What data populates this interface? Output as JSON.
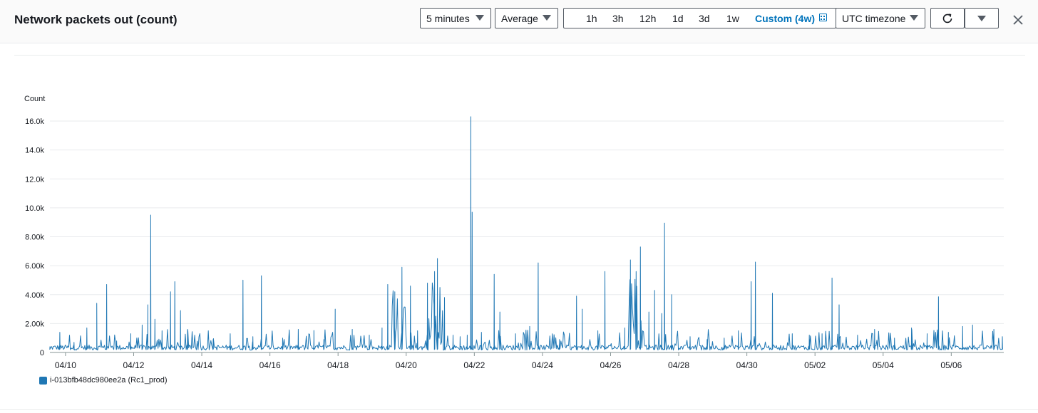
{
  "header": {
    "title": "Network packets out (count)",
    "period": {
      "selected": "5 minutes"
    },
    "statistic": {
      "selected": "Average"
    },
    "ranges": [
      {
        "label": "1h",
        "active": false
      },
      {
        "label": "3h",
        "active": false
      },
      {
        "label": "12h",
        "active": false
      },
      {
        "label": "1d",
        "active": false
      },
      {
        "label": "3d",
        "active": false
      },
      {
        "label": "1w",
        "active": false
      },
      {
        "label": "Custom (4w)",
        "active": true
      }
    ],
    "timezone": {
      "selected": "UTC timezone"
    },
    "icons": {
      "refresh": "refresh-icon",
      "more": "caret-down-icon",
      "close": "close-icon",
      "calendar": "calendar-icon"
    }
  },
  "chart_data": {
    "type": "line",
    "ylabel": "Count",
    "ylim": [
      0,
      16000
    ],
    "yticks": [
      {
        "value": 0,
        "label": "0"
      },
      {
        "value": 2000,
        "label": "2.00k"
      },
      {
        "value": 4000,
        "label": "4.00k"
      },
      {
        "value": 6000,
        "label": "6.00k"
      },
      {
        "value": 8000,
        "label": "8.00k"
      },
      {
        "value": 10000,
        "label": "10.0k"
      },
      {
        "value": 12000,
        "label": "12.0k"
      },
      {
        "value": 14000,
        "label": "14.0k"
      },
      {
        "value": 16000,
        "label": "16.0k"
      }
    ],
    "xlim": [
      "04/09 13:00",
      "05/07 13:00"
    ],
    "xticks": [
      "04/10",
      "04/12",
      "04/14",
      "04/16",
      "04/18",
      "04/20",
      "04/22",
      "04/24",
      "04/26",
      "04/28",
      "04/30",
      "05/02",
      "05/04",
      "05/06"
    ],
    "grid": true,
    "legend_position": "bottom-left",
    "series": [
      {
        "name": "i-013bfb48dc980ee2a (Rc1_prod)",
        "color": "#1f77b4",
        "baseline": 400,
        "points": [
          [
            "04/09 13:00",
            300
          ],
          [
            "04/09 20:00",
            1400
          ],
          [
            "04/10 06:00",
            700
          ],
          [
            "04/10 15:00",
            1700
          ],
          [
            "04/10 22:00",
            3400
          ],
          [
            "04/11 05:00",
            4700
          ],
          [
            "04/11 12:00",
            800
          ],
          [
            "04/11 22:00",
            1300
          ],
          [
            "04/12 06:00",
            1900
          ],
          [
            "04/12 10:00",
            3300
          ],
          [
            "04/12 12:00",
            9500
          ],
          [
            "04/12 15:00",
            2300
          ],
          [
            "04/12 20:00",
            1500
          ],
          [
            "04/13 02:00",
            4200
          ],
          [
            "04/13 05:00",
            4900
          ],
          [
            "04/13 09:00",
            2900
          ],
          [
            "04/13 14:00",
            1600
          ],
          [
            "04/14 08:00",
            900
          ],
          [
            "04/14 20:00",
            1300
          ],
          [
            "04/15 05:00",
            5000
          ],
          [
            "04/15 12:00",
            1100
          ],
          [
            "04/15 18:00",
            5300
          ],
          [
            "04/16 09:00",
            1000
          ],
          [
            "04/16 20:00",
            1600
          ],
          [
            "04/17 07:00",
            900
          ],
          [
            "04/17 14:00",
            900
          ],
          [
            "04/17 22:00",
            3000
          ],
          [
            "04/18 10:00",
            1600
          ],
          [
            "04/18 22:00",
            1200
          ],
          [
            "04/19 07:00",
            1700
          ],
          [
            "04/19 11:00",
            4700
          ],
          [
            "04/19 16:00",
            4200
          ],
          [
            "04/19 21:00",
            5900
          ],
          [
            "04/20 03:00",
            4600
          ],
          [
            "04/20 08:00",
            1500
          ],
          [
            "04/20 15:00",
            4800
          ],
          [
            "04/20 20:00",
            5600
          ],
          [
            "04/20 22:00",
            6500
          ],
          [
            "04/21 03:00",
            3800
          ],
          [
            "04/21 09:00",
            1200
          ],
          [
            "04/21 14:00",
            1100
          ],
          [
            "04/21 19:00",
            1200
          ],
          [
            "04/21 21:30",
            16300
          ],
          [
            "04/21 22:30",
            9700
          ],
          [
            "04/22 05:00",
            1400
          ],
          [
            "04/22 14:00",
            5400
          ],
          [
            "04/22 18:00",
            2800
          ],
          [
            "04/23 05:00",
            1300
          ],
          [
            "04/23 15:00",
            1800
          ],
          [
            "04/23 21:00",
            6200
          ],
          [
            "04/24 12:00",
            900
          ],
          [
            "04/25 00:00",
            3900
          ],
          [
            "04/25 04:00",
            3000
          ],
          [
            "04/25 15:00",
            1500
          ],
          [
            "04/25 20:00",
            5600
          ],
          [
            "04/26 10:00",
            1700
          ],
          [
            "04/26 14:00",
            6400
          ],
          [
            "04/26 18:00",
            5600
          ],
          [
            "04/26 21:00",
            7300
          ],
          [
            "04/27 03:00",
            2800
          ],
          [
            "04/27 07:00",
            4300
          ],
          [
            "04/27 12:00",
            2700
          ],
          [
            "04/27 14:00",
            8950
          ],
          [
            "04/27 19:00",
            4000
          ],
          [
            "04/28 08:00",
            1100
          ],
          [
            "04/28 20:00",
            900
          ],
          [
            "04/29 08:00",
            1000
          ],
          [
            "04/29 18:00",
            1500
          ],
          [
            "04/30 03:00",
            4900
          ],
          [
            "04/30 06:00",
            6250
          ],
          [
            "04/30 18:00",
            4100
          ],
          [
            "05/01 08:00",
            1300
          ],
          [
            "05/01 20:00",
            1200
          ],
          [
            "05/02 05:00",
            1300
          ],
          [
            "05/02 12:00",
            5150
          ],
          [
            "05/02 17:00",
            3300
          ],
          [
            "05/03 06:00",
            1200
          ],
          [
            "05/03 18:00",
            1600
          ],
          [
            "05/04 08:00",
            1000
          ],
          [
            "05/04 20:00",
            1700
          ],
          [
            "05/05 07:00",
            1300
          ],
          [
            "05/05 15:00",
            3850
          ],
          [
            "05/05 22:00",
            1400
          ],
          [
            "05/06 08:00",
            1800
          ],
          [
            "05/06 15:00",
            1900
          ],
          [
            "05/07 06:00",
            1600
          ],
          [
            "05/07 12:00",
            1100
          ]
        ],
        "dense_bursts": [
          [
            "04/19 14:00",
            "04/20 00:00",
            4500
          ],
          [
            "04/20 16:00",
            "04/21 02:00",
            5000
          ],
          [
            "04/26 13:00",
            "04/26 23:00",
            5500
          ]
        ]
      }
    ]
  }
}
